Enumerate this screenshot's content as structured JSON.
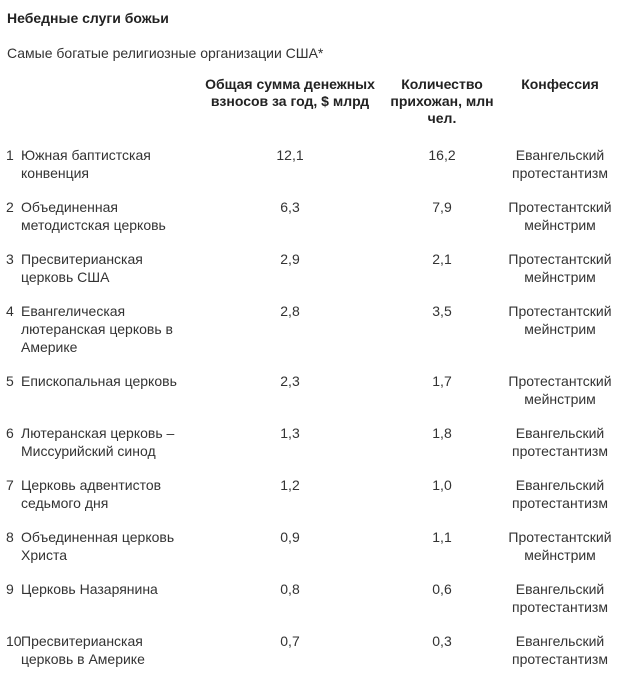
{
  "title": "Небедные слуги божьи",
  "subtitle": "Самые богатые религиозные организации США*",
  "headers": {
    "sum": "Общая сумма денежных взносов за год, $ млрд",
    "count": "Количество прихожан, млн чел.",
    "confession": "Конфессия"
  },
  "rows": [
    {
      "num": "1",
      "name": "Южная баптистская конвенция",
      "sum": "12,1",
      "count": "16,2",
      "confession": "Евангельский протестантизм"
    },
    {
      "num": "2",
      "name": "Объединенная методистская церковь",
      "sum": "6,3",
      "count": "7,9",
      "confession": "Протестантский мейнстрим"
    },
    {
      "num": "3",
      "name": "Пресвитерианская церковь США",
      "sum": "2,9",
      "count": "2,1",
      "confession": "Протестантский мейнстрим"
    },
    {
      "num": "4",
      "name": "Евангелическая лютеранская церковь в Америке",
      "sum": "2,8",
      "count": "3,5",
      "confession": "Протестантский мейнстрим"
    },
    {
      "num": "5",
      "name": "Епископальная церковь",
      "sum": "2,3",
      "count": "1,7",
      "confession": "Протестантский мейнстрим"
    },
    {
      "num": "6",
      "name": "Лютеранская церковь – Миссурийский синод",
      "sum": "1,3",
      "count": "1,8",
      "confession": "Евангельский протестантизм"
    },
    {
      "num": "7",
      "name": "Церковь адвентистов седьмого дня",
      "sum": "1,2",
      "count": "1,0",
      "confession": "Евангельский протестантизм"
    },
    {
      "num": "8",
      "name": "Объединенная церковь Христа",
      "sum": "0,9",
      "count": "1,1",
      "confession": "Протестантский мейнстрим"
    },
    {
      "num": "9",
      "name": "Церковь Назарянина",
      "sum": "0,8",
      "count": "0,6",
      "confession": "Евангельский протестантизм"
    },
    {
      "num": "10",
      "name": "Пресвитерианская церковь в Америке",
      "sum": "0,7",
      "count": "0,3",
      "confession": "Евангельский протестантизм"
    }
  ]
}
